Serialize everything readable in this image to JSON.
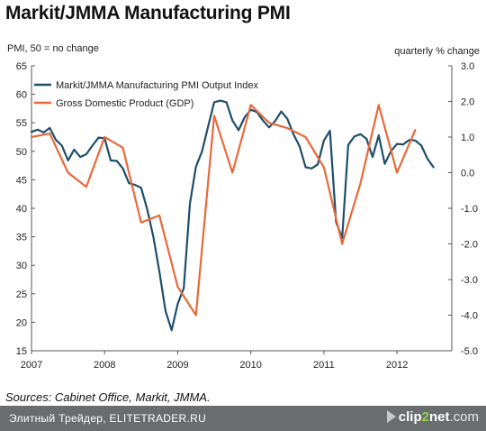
{
  "page": {
    "title": "Markit/JMMA Manufacturing PMI",
    "sources": "Sources: Cabinet Office, Markit, JMMA.",
    "footer_text": "Элитный Трейдер, ELITETRADER.RU",
    "brand_name": "clip",
    "brand_number": "2",
    "brand_net": "net",
    "brand_domain": ".com"
  },
  "colors": {
    "pmi": "#1f4e6b",
    "gdp": "#e8693a",
    "axis": "#555555",
    "footer_bg": "#6a6d70"
  },
  "chart_data": {
    "type": "line",
    "left_axis_label": "PMI, 50 = no change",
    "right_axis_label": "quarterly % change",
    "y_left": {
      "range": [
        15,
        65
      ],
      "ticks": [
        "15",
        "20",
        "25",
        "30",
        "35",
        "40",
        "45",
        "50",
        "55",
        "60",
        "65"
      ]
    },
    "y_right": {
      "range": [
        -5.0,
        3.0
      ],
      "ticks": [
        "-5.0",
        "-4.0",
        "-3.0",
        "-2.0",
        "-1.0",
        "0.0",
        "1.0",
        "2.0",
        "3.0"
      ]
    },
    "x": {
      "range": [
        2007.0,
        2012.75
      ],
      "ticks": [
        "2007",
        "2008",
        "2009",
        "2010",
        "2011",
        "2012"
      ]
    },
    "legend_position": "top-left",
    "grid": false,
    "series": [
      {
        "name": "Markit/JMMA Manufacturing PMI Output Index",
        "axis": "left",
        "x": [
          2007.0,
          2007.0833,
          2007.1667,
          2007.25,
          2007.3333,
          2007.4167,
          2007.5,
          2007.5833,
          2007.6667,
          2007.75,
          2007.8333,
          2007.9167,
          2008.0,
          2008.0833,
          2008.1667,
          2008.25,
          2008.3333,
          2008.4167,
          2008.5,
          2008.5833,
          2008.6667,
          2008.75,
          2008.8333,
          2008.9167,
          2009.0,
          2009.0833,
          2009.1667,
          2009.25,
          2009.3333,
          2009.4167,
          2009.5,
          2009.5833,
          2009.6667,
          2009.75,
          2009.8333,
          2009.9167,
          2010.0,
          2010.0833,
          2010.1667,
          2010.25,
          2010.3333,
          2010.4167,
          2010.5,
          2010.5833,
          2010.6667,
          2010.75,
          2010.8333,
          2010.9167,
          2011.0,
          2011.0833,
          2011.1667,
          2011.25,
          2011.3333,
          2011.4167,
          2011.5,
          2011.5833,
          2011.6667,
          2011.75,
          2011.8333,
          2011.9167,
          2012.0,
          2012.0833,
          2012.1667,
          2012.25,
          2012.3333,
          2012.4167,
          2012.5
        ],
        "values": [
          53.4,
          53.8,
          53.3,
          54.1,
          52.0,
          51.0,
          48.4,
          50.3,
          49.0,
          49.5,
          51.0,
          52.4,
          52.3,
          48.4,
          48.3,
          47.0,
          44.4,
          44.1,
          43.6,
          39.8,
          35.0,
          28.9,
          22.0,
          18.6,
          23.2,
          26.0,
          40.8,
          47.3,
          50.0,
          54.4,
          58.6,
          58.9,
          58.6,
          55.4,
          53.7,
          56.0,
          57.3,
          56.9,
          55.4,
          54.2,
          55.3,
          57.0,
          55.7,
          53.0,
          50.9,
          47.2,
          47.0,
          47.7,
          51.9,
          53.6,
          37.6,
          34.8,
          51.1,
          52.6,
          53.0,
          52.2,
          49.0,
          52.8,
          47.8,
          50.0,
          51.3,
          51.2,
          52.0,
          51.9,
          51.0,
          48.7,
          47.2
        ]
      },
      {
        "name": "Gross Domestic Product (GDP)",
        "axis": "right",
        "x": [
          2007.0,
          2007.25,
          2007.5,
          2007.75,
          2008.0,
          2008.25,
          2008.5,
          2008.75,
          2009.0,
          2009.25,
          2009.5,
          2009.75,
          2010.0,
          2010.25,
          2010.5,
          2010.75,
          2011.0,
          2011.25,
          2011.5,
          2011.75,
          2012.0,
          2012.25
        ],
        "values": [
          1.0,
          1.1,
          0.0,
          -0.4,
          1.0,
          0.7,
          -1.4,
          -1.2,
          -3.2,
          -4.0,
          1.6,
          0.0,
          1.9,
          1.4,
          1.25,
          1.0,
          0.15,
          -2.0,
          -0.3,
          1.9,
          0.0,
          1.2
        ]
      }
    ]
  }
}
